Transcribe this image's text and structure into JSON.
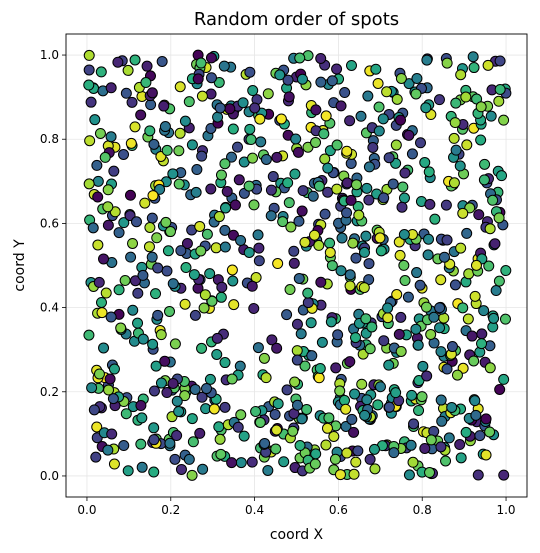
{
  "chart_data": {
    "type": "scatter",
    "title": "Random order of spots",
    "xlabel": "coord X",
    "ylabel": "coord Y",
    "xlim": [
      -0.05,
      1.05
    ],
    "ylim": [
      -0.05,
      1.05
    ],
    "xticks": [
      "0.0",
      "0.2",
      "0.4",
      "0.6",
      "0.8",
      "1.0"
    ],
    "yticks": [
      "0.0",
      "0.2",
      "0.4",
      "0.6",
      "0.8",
      "1.0"
    ],
    "grid": true,
    "legend": "none",
    "colormap": "viridis",
    "marker_edge_color": "#000000",
    "n_points": 1000,
    "seed": 17
  }
}
